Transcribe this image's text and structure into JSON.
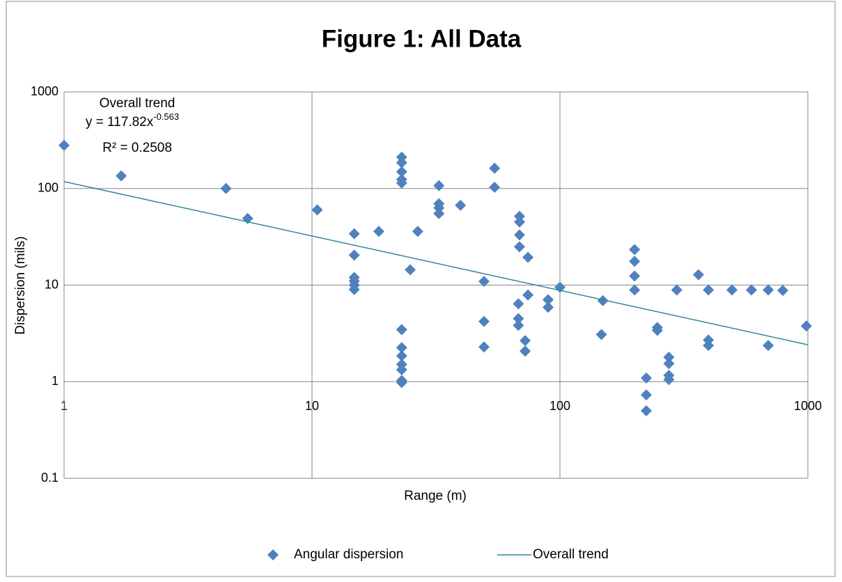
{
  "chart_data": {
    "type": "scatter",
    "title": "Figure 1: All Data",
    "x_label": "Range (m)",
    "y_label": "Dispersion (mils)",
    "x_log": true,
    "y_log": true,
    "grid": true,
    "legend": "bottom",
    "x_axis_crosses": 1,
    "xlim": [
      1,
      1000
    ],
    "ylim": [
      0.1,
      1000
    ],
    "xticks": [
      1,
      10,
      100,
      1000
    ],
    "yticks": [
      0.1,
      1,
      10,
      100,
      1000
    ],
    "x": [
      1,
      1.7,
      4.5,
      5.5,
      10.5,
      14.8,
      14.8,
      14.8,
      14.8,
      14.8,
      14.8,
      18.6,
      23,
      23,
      23,
      23,
      23,
      23,
      23,
      23,
      23,
      23,
      23,
      23,
      24.9,
      26.7,
      32.5,
      32.5,
      32.5,
      32.5,
      39.7,
      49.4,
      49.4,
      49.4,
      54.5,
      54.5,
      68.7,
      68.7,
      68.7,
      68.7,
      68,
      68,
      68,
      74.3,
      74.3,
      72.4,
      72.4,
      89.6,
      89.6,
      100,
      149,
      147,
      200,
      200,
      200,
      200,
      223,
      223,
      223,
      247,
      247,
      275,
      275,
      275,
      275,
      296,
      362,
      397,
      397,
      397,
      494,
      592,
      692,
      692,
      792,
      986
    ],
    "series": [
      {
        "name": "Angular dispersion",
        "color": "#4f81bd",
        "values": [
          280,
          135,
          100,
          49,
          60,
          34,
          20.4,
          12,
          11,
          10,
          9,
          36,
          211,
          185,
          149,
          124,
          114,
          3.46,
          2.25,
          1.85,
          1.51,
          1.33,
          1.03,
          0.98,
          14.4,
          36,
          107,
          69.5,
          63,
          55,
          67,
          10.9,
          4.2,
          2.29,
          162,
          103,
          51.5,
          45,
          33,
          24.9,
          6.4,
          4.5,
          3.83,
          19.4,
          7.9,
          2.66,
          2.07,
          7.06,
          5.89,
          9.5,
          6.9,
          3.08,
          23.3,
          17.6,
          12.4,
          8.9,
          1.09,
          0.73,
          0.5,
          3.64,
          3.4,
          1.79,
          1.54,
          1.16,
          1.05,
          8.9,
          12.8,
          8.9,
          2.7,
          2.37,
          8.9,
          8.9,
          8.9,
          2.37,
          8.8,
          3.77
        ]
      }
    ],
    "trendline": {
      "name": "Overall trend",
      "color": "#31859c",
      "coefficient": 117.82,
      "exponent": -0.563,
      "r_squared": 0.2508,
      "equation": [
        "y = 117.82x",
        "-0.563"
      ],
      "r_squared_label": "R² = 0.2508"
    }
  }
}
